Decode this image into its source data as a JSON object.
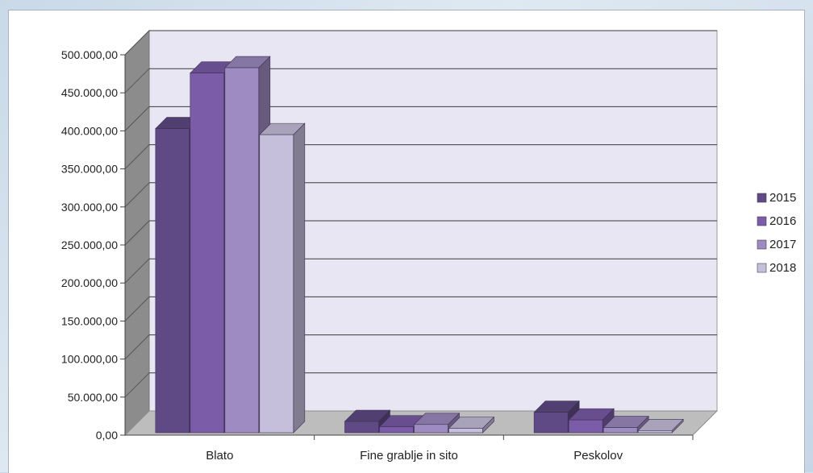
{
  "chart_data": {
    "type": "bar",
    "style": "3d-clustered-column",
    "categories": [
      "Blato",
      "Fine grablje in sito",
      "Peskolov"
    ],
    "series": [
      {
        "name": "2015",
        "color": "#5f4a85",
        "values": [
          403000,
          18000,
          30000
        ]
      },
      {
        "name": "2016",
        "color": "#7a5ca8",
        "values": [
          476000,
          11000,
          20000
        ]
      },
      {
        "name": "2017",
        "color": "#9d8bc1",
        "values": [
          483000,
          14000,
          10000
        ]
      },
      {
        "name": "2018",
        "color": "#c6bfdc",
        "values": [
          395000,
          9000,
          6000
        ]
      }
    ],
    "title": "",
    "xlabel": "",
    "ylabel": "",
    "ylim": [
      0,
      500000
    ],
    "yticks": [
      "0,00",
      "50.000,00",
      "100.000,00",
      "150.000,00",
      "200.000,00",
      "250.000,00",
      "300.000,00",
      "350.000,00",
      "400.000,00",
      "450.000,00",
      "500.000,00"
    ],
    "grid": true,
    "legend_position": "right",
    "wall_color": "#e8e6f2",
    "floor_color": "#bdbdbd",
    "side_wall_color": "#8c8c8c"
  }
}
